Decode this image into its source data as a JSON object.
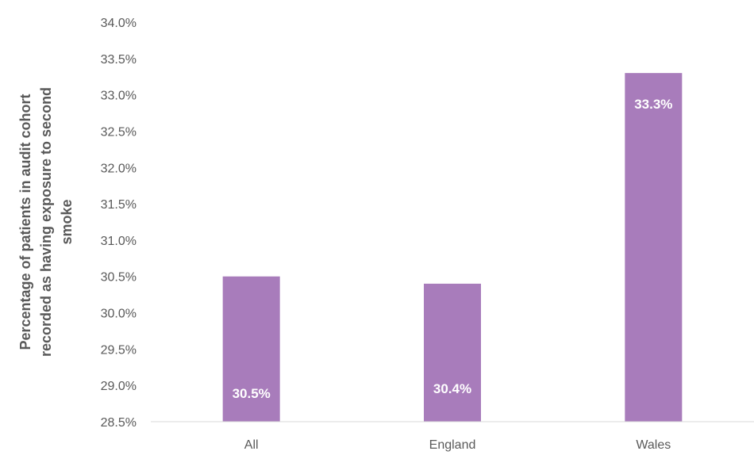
{
  "chart_data": {
    "type": "bar",
    "title": "",
    "xlabel": "",
    "ylabel": "Percentage of patients in audit cohort recorded as having exposure to second smoke",
    "ylabel_lines": [
      "Percentage of patients in audit cohort",
      "recorded as having exposure to second",
      "smoke"
    ],
    "categories": [
      "All",
      "England",
      "Wales"
    ],
    "values": [
      30.5,
      30.4,
      33.3
    ],
    "data_labels": [
      "30.5%",
      "30.4%",
      "33.3%"
    ],
    "ylim": [
      28.5,
      34.0
    ],
    "yticks": [
      28.5,
      29.0,
      29.5,
      30.0,
      30.5,
      31.0,
      31.5,
      32.0,
      32.5,
      33.0,
      33.5,
      34.0
    ],
    "ytick_labels": [
      "28.5%",
      "29.0%",
      "29.5%",
      "30.0%",
      "30.5%",
      "31.0%",
      "31.5%",
      "32.0%",
      "32.5%",
      "33.0%",
      "33.5%",
      "34.0%"
    ],
    "grid": false,
    "legend": "none",
    "bar_color": "#a87cbb",
    "axis_color": "#d9d9d9",
    "text_color": "#595959"
  }
}
